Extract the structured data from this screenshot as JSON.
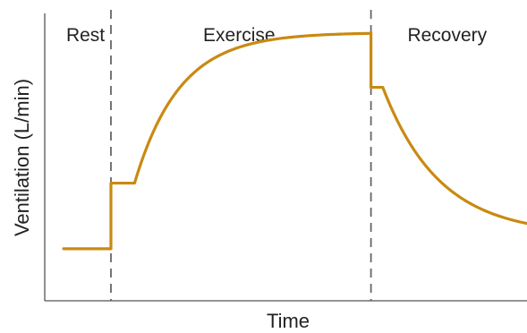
{
  "chart_data": {
    "type": "line",
    "title": "",
    "xlabel": "Time",
    "ylabel": "Ventilation (L/min)",
    "x_ticks_shown": false,
    "y_ticks_shown": false,
    "grid": false,
    "legend": "none",
    "phases": [
      {
        "label": "Rest",
        "start": 0,
        "end": 1
      },
      {
        "label": "Exercise",
        "start": 1,
        "end": 6.5
      },
      {
        "label": "Recovery",
        "start": 6.5,
        "end": 9.8
      }
    ],
    "phase_boundaries": [
      1,
      6.5
    ],
    "xlim": [
      -0.4,
      9.8
    ],
    "ylim": [
      0,
      1.05
    ],
    "series": [
      {
        "line_color": "#c98a12",
        "profile": {
          "rest_level": 0.19,
          "exercise_onset_level": 0.43,
          "onset_plateau_end": 1.5,
          "steady_state_level": 0.98,
          "exercise_time_constant": 0.95,
          "recovery_fast_level": 0.78,
          "recovery_fast_plateau_end": 6.75,
          "recovery_end_level": 0.24,
          "recovery_time_constant": 1.2
        }
      }
    ]
  }
}
